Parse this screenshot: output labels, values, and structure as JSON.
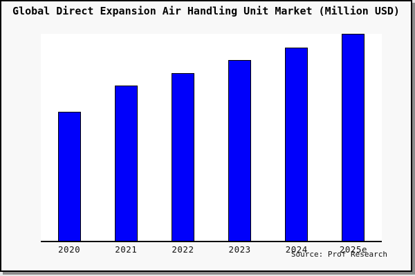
{
  "window": {
    "background": "#f8f8f8",
    "frame_border_color": "#000000",
    "frame_shadow_color": "#8c8c8c"
  },
  "chart_data": {
    "type": "bar",
    "title": "Global Direct Expansion Air Handling Unit Market (Million USD)",
    "categories": [
      "2020",
      "2021",
      "2022",
      "2023",
      "2024",
      "2025e"
    ],
    "values": [
      62.5,
      75.0,
      81.0,
      87.5,
      93.5,
      100.0
    ],
    "values_note": "no y-axis or value labels shown in image; values estimated from bar heights relative to tallest bar (2025e = 100)",
    "xlabel": "",
    "ylabel": "",
    "ylim": [
      0,
      100
    ],
    "grid": false,
    "legend": false,
    "bar_color": "#0000fb",
    "bar_edge_color": "#000000",
    "plot_background": "#ffffff",
    "source_note": "Source: Prof Research"
  }
}
